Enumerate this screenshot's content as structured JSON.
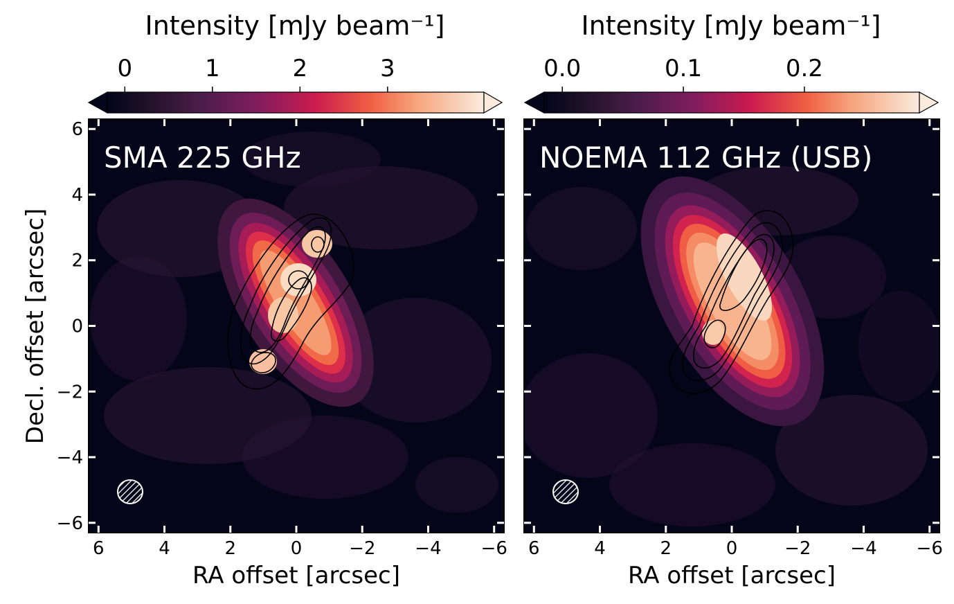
{
  "chart_data": [
    {
      "type": "heatmap",
      "title": "SMA 225 GHz",
      "xlabel": "RA offset [arcsec]",
      "ylabel": "Decl. offset [arcsec]",
      "xlim": [
        6.3,
        -6.3
      ],
      "ylim": [
        -6.3,
        6.3
      ],
      "x_ticks": [
        6,
        4,
        2,
        0,
        -2,
        -4,
        -6
      ],
      "y_ticks": [
        -6,
        -4,
        -2,
        0,
        2,
        4,
        6
      ],
      "x_tick_labels": [
        "6",
        "4",
        "2",
        "0",
        "−2",
        "−4",
        "−6"
      ],
      "y_tick_labels": [
        "−6",
        "−4",
        "−2",
        "0",
        "2",
        "4",
        "6"
      ],
      "colorbar": {
        "label": "Intensity [mJy beam⁻¹]",
        "ticks": [
          0,
          1,
          2,
          3
        ],
        "tick_labels": [
          "0",
          "1",
          "2",
          "3"
        ],
        "range": [
          -0.2,
          4.1
        ],
        "extend": "both",
        "colormap": "rocket"
      },
      "source": {
        "center": [
          0.0,
          0.7
        ],
        "position_angle_deg": 32,
        "major_fwhm_arcsec": 5.2,
        "minor_fwhm_arcsec": 1.8,
        "peaks": [
          {
            "x": -0.6,
            "y": 2.5,
            "value": 3.2
          },
          {
            "x": 0.0,
            "y": 1.4,
            "value": 3.4
          },
          {
            "x": 0.2,
            "y": 0.3,
            "value": 3.0
          },
          {
            "x": 1.0,
            "y": -1.1,
            "value": 3.1
          }
        ]
      },
      "contour_levels": [
        0.9,
        1.8,
        2.7,
        3.6
      ],
      "beam": {
        "x": 5.0,
        "y": -5.0,
        "major_arcsec": 0.8,
        "minor_arcsec": 0.75
      }
    },
    {
      "type": "heatmap",
      "title": "NOEMA 112 GHz (USB)",
      "xlabel": "RA offset [arcsec]",
      "ylabel": "",
      "xlim": [
        6.3,
        -6.3
      ],
      "ylim": [
        -6.3,
        6.3
      ],
      "x_ticks": [
        6,
        4,
        2,
        0,
        -2,
        -4,
        -6
      ],
      "y_ticks": [
        -6,
        -4,
        -2,
        0,
        2,
        4,
        6
      ],
      "x_tick_labels": [
        "6",
        "4",
        "2",
        "0",
        "−2",
        "−4",
        "−6"
      ],
      "y_tick_labels": [],
      "colorbar": {
        "label": "Intensity [mJy beam⁻¹]",
        "ticks": [
          0.0,
          0.1,
          0.2
        ],
        "tick_labels": [
          "0.0",
          "0.1",
          "0.2"
        ],
        "range": [
          -0.015,
          0.295
        ],
        "extend": "both",
        "colormap": "rocket"
      },
      "source": {
        "center": [
          0.0,
          0.8
        ],
        "position_angle_deg": 30,
        "major_fwhm_arcsec": 6.0,
        "minor_fwhm_arcsec": 2.2,
        "peaks": [
          {
            "x": -0.5,
            "y": 1.7,
            "value": 0.27
          },
          {
            "x": 0.6,
            "y": -0.3,
            "value": 0.24
          }
        ]
      },
      "contour_levels": [
        0.05,
        0.1,
        0.15,
        0.2,
        0.25
      ],
      "beam": {
        "x": 5.0,
        "y": -5.0,
        "major_arcsec": 0.8,
        "minor_arcsec": 0.75
      }
    }
  ]
}
